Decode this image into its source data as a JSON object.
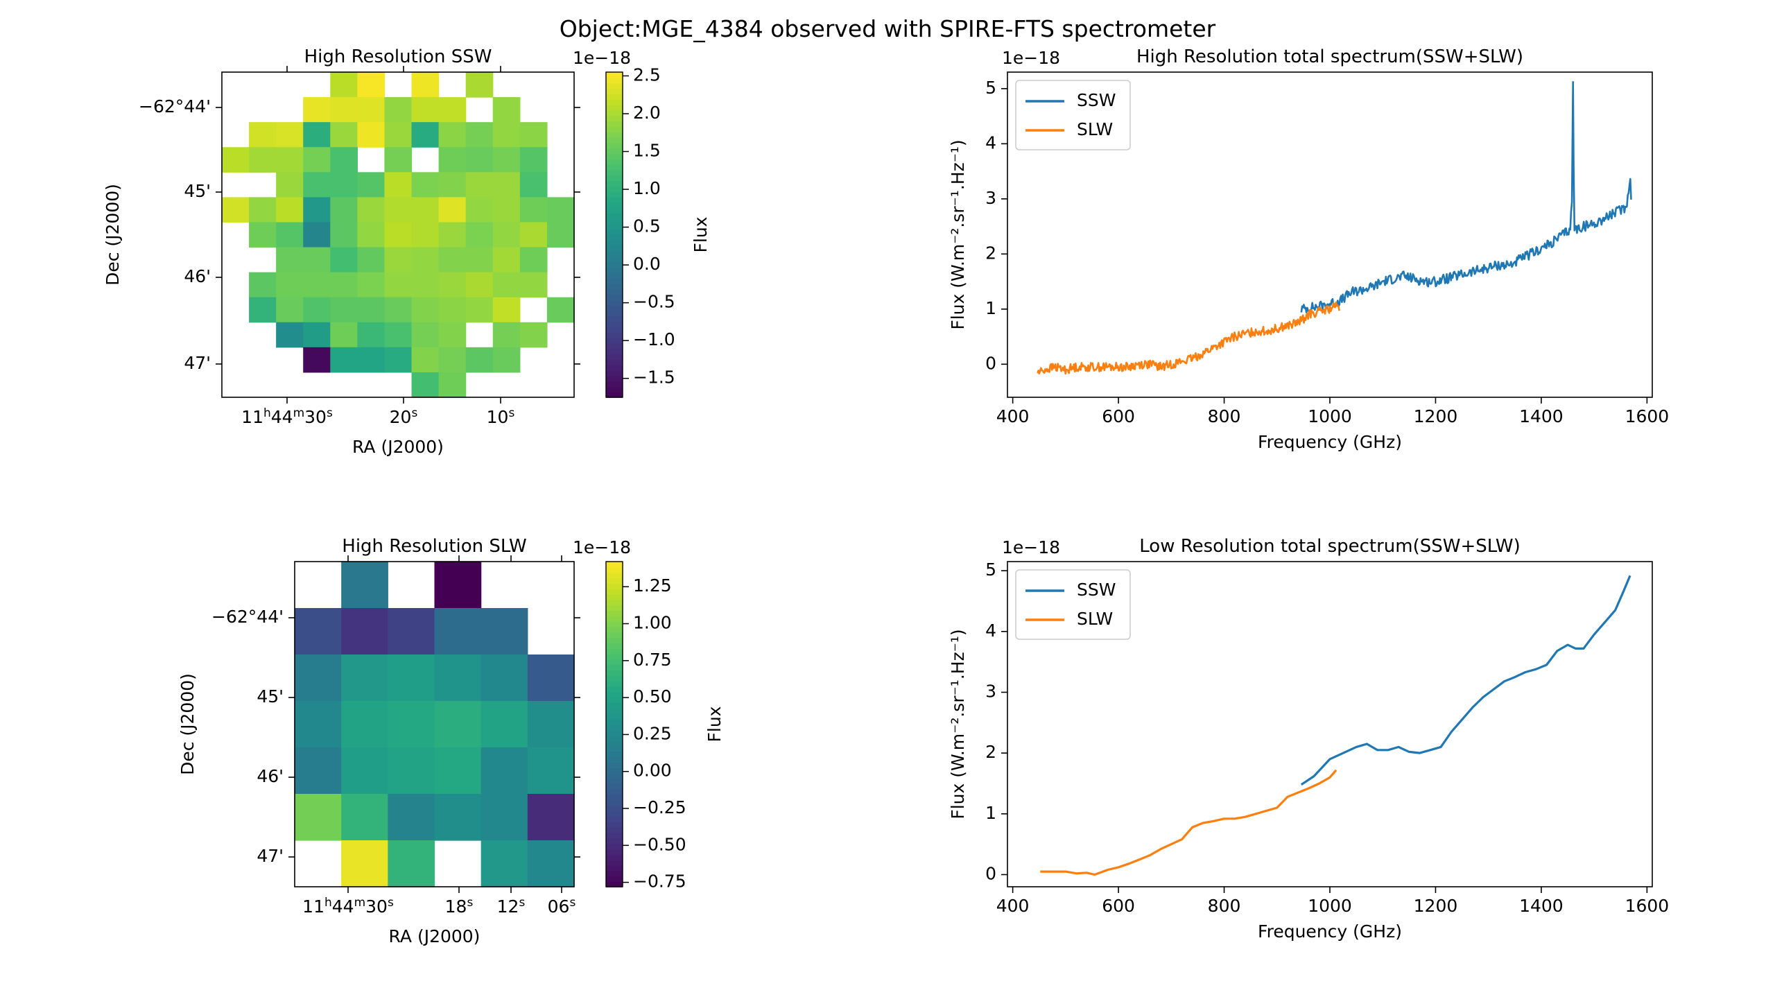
{
  "suptitle": "Object:MGE_4384 observed with SPIRE-FTS spectrometer",
  "chart_data": [
    {
      "type": "heatmap",
      "title": "High Resolution SSW",
      "xlabel": "RA (J2000)",
      "ylabel": "Dec (J2000)",
      "x_ticks": [
        "11h44m30s",
        "20s",
        "10s"
      ],
      "y_ticks": [
        "-62°44'",
        "45'",
        "46'",
        "47'"
      ],
      "colorbar": {
        "label": "Flux",
        "offset_text": "1e−18",
        "vmin": -1.75,
        "vmax": 2.55,
        "ticks": [
          -1.5,
          -1.0,
          -0.5,
          0.0,
          0.5,
          1.0,
          1.5,
          2.0,
          2.5
        ],
        "tick_labels": [
          "−1.5",
          "−1.0",
          "−0.5",
          "0.0",
          "0.5",
          "1.0",
          "1.5",
          "2.0",
          "2.5"
        ],
        "colormap": "viridis"
      },
      "grid": [
        [
          null,
          null,
          null,
          null,
          2.1,
          2.5,
          null,
          2.45,
          null,
          2.0,
          null,
          null,
          null
        ],
        [
          null,
          null,
          null,
          2.4,
          2.35,
          2.35,
          1.85,
          2.15,
          2.15,
          null,
          1.85,
          null,
          null
        ],
        [
          null,
          2.25,
          2.3,
          0.95,
          1.9,
          2.45,
          1.9,
          0.9,
          1.8,
          1.65,
          1.85,
          1.8,
          null
        ],
        [
          2.1,
          1.95,
          1.95,
          1.65,
          1.3,
          null,
          1.65,
          null,
          1.6,
          1.55,
          1.65,
          1.4,
          null
        ],
        [
          null,
          null,
          1.9,
          1.3,
          1.3,
          1.4,
          2.1,
          1.7,
          1.75,
          1.9,
          1.9,
          1.3,
          null
        ],
        [
          2.25,
          1.85,
          2.1,
          0.55,
          1.45,
          1.9,
          2.05,
          2.05,
          2.35,
          1.85,
          1.9,
          1.6,
          1.55
        ],
        [
          null,
          1.6,
          1.4,
          0.2,
          1.45,
          1.85,
          2.1,
          2.05,
          1.9,
          1.7,
          1.85,
          2.0,
          1.55
        ],
        [
          null,
          null,
          1.55,
          1.55,
          1.25,
          1.5,
          1.9,
          1.85,
          1.75,
          1.75,
          1.95,
          1.6,
          null
        ],
        [
          null,
          1.45,
          1.6,
          1.6,
          1.6,
          1.7,
          1.85,
          1.85,
          1.9,
          2.0,
          1.85,
          1.85,
          null
        ],
        [
          null,
          1.05,
          1.55,
          1.35,
          1.45,
          1.45,
          1.55,
          1.75,
          1.8,
          1.85,
          2.15,
          null,
          1.55
        ],
        [
          null,
          null,
          0.35,
          0.65,
          1.6,
          1.15,
          1.3,
          1.65,
          1.75,
          null,
          1.65,
          1.75,
          null
        ],
        [
          null,
          null,
          null,
          -1.65,
          0.8,
          0.8,
          0.9,
          1.75,
          1.65,
          1.45,
          1.55,
          null,
          null
        ],
        [
          null,
          null,
          null,
          null,
          null,
          null,
          null,
          1.25,
          1.6,
          null,
          null,
          null,
          null
        ]
      ]
    },
    {
      "type": "line",
      "title": "High Resolution total spectrum(SSW+SLW)",
      "xlabel": "Frequency (GHz)",
      "ylabel": "Flux (W.m⁻².sr⁻¹.Hz⁻¹)",
      "offset_text": "1e−18",
      "xlim": [
        390,
        1610
      ],
      "ylim": [
        -0.6,
        5.3
      ],
      "x_ticks": [
        400,
        600,
        800,
        1000,
        1200,
        1400,
        1600
      ],
      "y_ticks": [
        0,
        1,
        2,
        3,
        4,
        5
      ],
      "legend_position": "top-left",
      "series": [
        {
          "name": "SSW",
          "color": "#1f77b4",
          "x": [
            946,
            980,
            1000,
            1020,
            1040,
            1060,
            1080,
            1100,
            1120,
            1140,
            1160,
            1180,
            1200,
            1220,
            1240,
            1260,
            1280,
            1300,
            1320,
            1340,
            1360,
            1380,
            1400,
            1420,
            1440,
            1455,
            1458,
            1460,
            1462,
            1465,
            1480,
            1500,
            1520,
            1540,
            1560,
            1565,
            1568,
            1570
          ],
          "y": [
            1.0,
            1.05,
            1.1,
            1.15,
            1.3,
            1.35,
            1.4,
            1.5,
            1.55,
            1.6,
            1.55,
            1.5,
            1.5,
            1.55,
            1.6,
            1.65,
            1.7,
            1.75,
            1.8,
            1.8,
            1.9,
            2.0,
            2.1,
            2.2,
            2.35,
            2.45,
            3.0,
            5.12,
            2.5,
            2.45,
            2.5,
            2.55,
            2.65,
            2.75,
            2.85,
            3.1,
            3.45,
            3.05
          ],
          "noise": 0.09
        },
        {
          "name": "SLW",
          "color": "#ff7f0e",
          "x": [
            447,
            460,
            480,
            500,
            520,
            540,
            560,
            580,
            600,
            620,
            640,
            660,
            680,
            700,
            720,
            740,
            760,
            780,
            800,
            820,
            840,
            860,
            880,
            900,
            920,
            940,
            960,
            980,
            1000,
            1010,
            1018
          ],
          "y": [
            -0.15,
            -0.1,
            -0.05,
            -0.1,
            -0.05,
            -0.05,
            -0.05,
            -0.05,
            -0.05,
            -0.05,
            0.0,
            0.0,
            -0.05,
            0.0,
            0.05,
            0.1,
            0.2,
            0.3,
            0.4,
            0.5,
            0.55,
            0.6,
            0.6,
            0.65,
            0.7,
            0.75,
            0.9,
            0.95,
            1.0,
            1.05,
            1.0
          ],
          "noise": 0.08
        }
      ]
    },
    {
      "type": "heatmap",
      "title": "High Resolution SLW",
      "xlabel": "RA (J2000)",
      "ylabel": "Dec (J2000)",
      "x_ticks": [
        "11h44m30s",
        "18s",
        "12s",
        "06s"
      ],
      "y_ticks": [
        "-62°44'",
        "45'",
        "46'",
        "47'"
      ],
      "colorbar": {
        "label": "Flux",
        "offset_text": "1e−18",
        "vmin": -0.78,
        "vmax": 1.42,
        "ticks": [
          -0.75,
          -0.5,
          -0.25,
          0.0,
          0.25,
          0.5,
          0.75,
          1.0,
          1.25
        ],
        "tick_labels": [
          "−0.75",
          "−0.50",
          "−0.25",
          "0.00",
          "0.25",
          "0.50",
          "0.75",
          "1.00",
          "1.25"
        ],
        "colormap": "viridis"
      },
      "grid": [
        [
          null,
          0.1,
          null,
          -0.78,
          null,
          null
        ],
        [
          -0.25,
          -0.45,
          -0.35,
          0.0,
          0.0,
          null
        ],
        [
          0.15,
          0.4,
          0.45,
          0.35,
          0.25,
          -0.15
        ],
        [
          0.25,
          0.5,
          0.55,
          0.6,
          0.5,
          0.3
        ],
        [
          0.15,
          0.45,
          0.5,
          0.55,
          0.25,
          0.35
        ],
        [
          0.95,
          0.65,
          0.2,
          0.3,
          0.25,
          -0.5
        ],
        [
          null,
          1.35,
          0.65,
          null,
          0.4,
          0.25
        ]
      ]
    },
    {
      "type": "line",
      "title": "Low Resolution total spectrum(SSW+SLW)",
      "xlabel": "Frequency (GHz)",
      "ylabel": "Flux (W.m⁻².sr⁻¹.Hz⁻¹)",
      "offset_text": "1e−18",
      "xlim": [
        390,
        1610
      ],
      "ylim": [
        -0.2,
        5.15
      ],
      "x_ticks": [
        400,
        600,
        800,
        1000,
        1200,
        1400,
        1600
      ],
      "y_ticks": [
        0,
        1,
        2,
        3,
        4,
        5
      ],
      "legend_position": "top-left",
      "series": [
        {
          "name": "SSW",
          "color": "#1f77b4",
          "x": [
            946,
            970,
            1000,
            1030,
            1050,
            1070,
            1090,
            1110,
            1130,
            1150,
            1170,
            1190,
            1210,
            1230,
            1250,
            1270,
            1290,
            1310,
            1330,
            1350,
            1370,
            1390,
            1410,
            1430,
            1450,
            1465,
            1480,
            1500,
            1520,
            1540,
            1555,
            1568
          ],
          "y": [
            1.48,
            1.62,
            1.9,
            2.02,
            2.1,
            2.15,
            2.05,
            2.05,
            2.1,
            2.02,
            2.0,
            2.05,
            2.1,
            2.35,
            2.55,
            2.75,
            2.92,
            3.05,
            3.18,
            3.25,
            3.33,
            3.38,
            3.45,
            3.68,
            3.78,
            3.72,
            3.72,
            3.95,
            4.15,
            4.35,
            4.65,
            4.92
          ],
          "noise": 0
        },
        {
          "name": "SLW",
          "color": "#ff7f0e",
          "x": [
            452,
            480,
            500,
            520,
            540,
            555,
            580,
            600,
            620,
            640,
            660,
            680,
            700,
            720,
            740,
            760,
            780,
            800,
            820,
            840,
            860,
            880,
            900,
            920,
            940,
            960,
            980,
            1000,
            1012
          ],
          "y": [
            0.05,
            0.05,
            0.05,
            0.02,
            0.03,
            0.0,
            0.08,
            0.12,
            0.18,
            0.25,
            0.32,
            0.42,
            0.5,
            0.58,
            0.78,
            0.85,
            0.88,
            0.92,
            0.92,
            0.95,
            1.0,
            1.05,
            1.1,
            1.28,
            1.35,
            1.42,
            1.5,
            1.6,
            1.72
          ],
          "noise": 0
        }
      ]
    }
  ]
}
